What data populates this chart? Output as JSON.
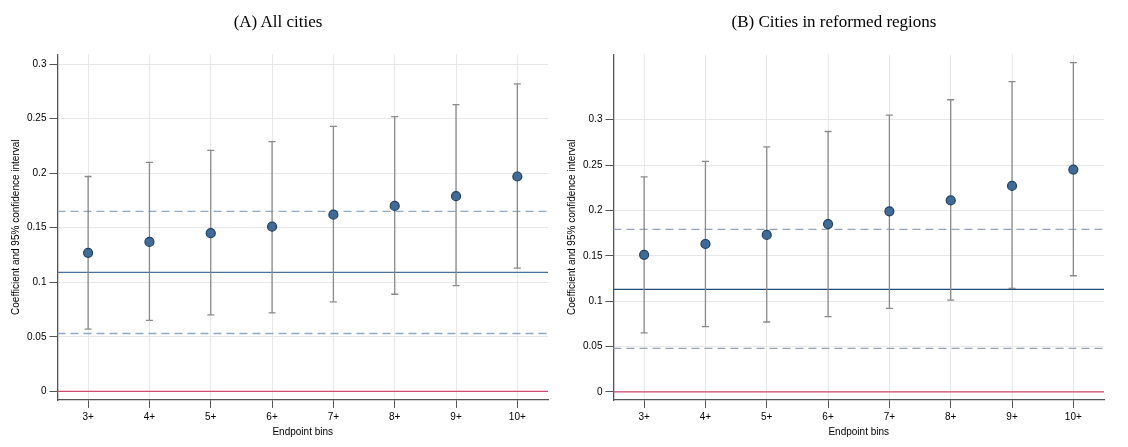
{
  "chart_data": [
    {
      "type": "scatter",
      "title": "(A) All cities",
      "xlabel": "Endpoint bins",
      "ylabel": "Coefficient and 95% confidence interval",
      "categories": [
        "3+",
        "4+",
        "5+",
        "6+",
        "7+",
        "8+",
        "9+",
        "10+"
      ],
      "series": [
        {
          "color": "#3f6b96",
          "values": [
            0.127,
            0.137,
            0.145,
            0.151,
            0.162,
            0.17,
            0.179,
            0.197
          ],
          "errors": [
            [
              0.057,
              0.197
            ],
            [
              0.065,
              0.21
            ],
            [
              0.07,
              0.221
            ],
            [
              0.072,
              0.229
            ],
            [
              0.082,
              0.243
            ],
            [
              0.089,
              0.252
            ],
            [
              0.097,
              0.263
            ],
            [
              0.113,
              0.282
            ]
          ]
        }
      ],
      "ylim": [
        -0.008,
        0.309
      ],
      "yticks": [
        0,
        0.05,
        0.1,
        0.15,
        0.2,
        0.25,
        0.3
      ],
      "grid": true,
      "marker": "circle",
      "ref_lines": [
        {
          "axis": "y",
          "value": 0,
          "color": "#d1496b",
          "line_style": "solid"
        },
        {
          "axis": "y",
          "value": 0.109,
          "color": "#4a7299",
          "line_style": "solid"
        },
        {
          "axis": "y",
          "value": 0.165,
          "color": "#8fa9c4",
          "line_style": "dashed"
        },
        {
          "axis": "y",
          "value": 0.053,
          "color": "#8fa9c4",
          "line_style": "dashed"
        }
      ]
    },
    {
      "type": "scatter",
      "title": "(B) Cities in reformed regions",
      "xlabel": "Endpoint bins",
      "ylabel": "Coefficient and 95% confidence interval",
      "categories": [
        "3+",
        "4+",
        "5+",
        "6+",
        "7+",
        "8+",
        "9+",
        "10+"
      ],
      "series": [
        {
          "color": "#3f6b96",
          "values": [
            0.151,
            0.163,
            0.173,
            0.185,
            0.199,
            0.211,
            0.227,
            0.245
          ],
          "errors": [
            [
              0.065,
              0.237
            ],
            [
              0.072,
              0.254
            ],
            [
              0.077,
              0.27
            ],
            [
              0.083,
              0.287
            ],
            [
              0.092,
              0.305
            ],
            [
              0.101,
              0.322
            ],
            [
              0.114,
              0.342
            ],
            [
              0.128,
              0.363
            ]
          ]
        }
      ],
      "ylim": [
        -0.009,
        0.372
      ],
      "yticks": [
        0,
        0.05,
        0.1,
        0.15,
        0.2,
        0.25,
        0.3
      ],
      "grid": true,
      "marker": "circle",
      "ref_lines": [
        {
          "axis": "y",
          "value": 0,
          "color": "#d1496b",
          "line_style": "solid"
        },
        {
          "axis": "y",
          "value": 0.113,
          "color": "#1f4e79",
          "line_style": "solid"
        },
        {
          "axis": "y",
          "value": 0.179,
          "color": "#94a3b5",
          "line_style": "dashed"
        },
        {
          "axis": "y",
          "value": 0.048,
          "color": "#94a3b5",
          "line_style": "dashed"
        }
      ]
    }
  ]
}
